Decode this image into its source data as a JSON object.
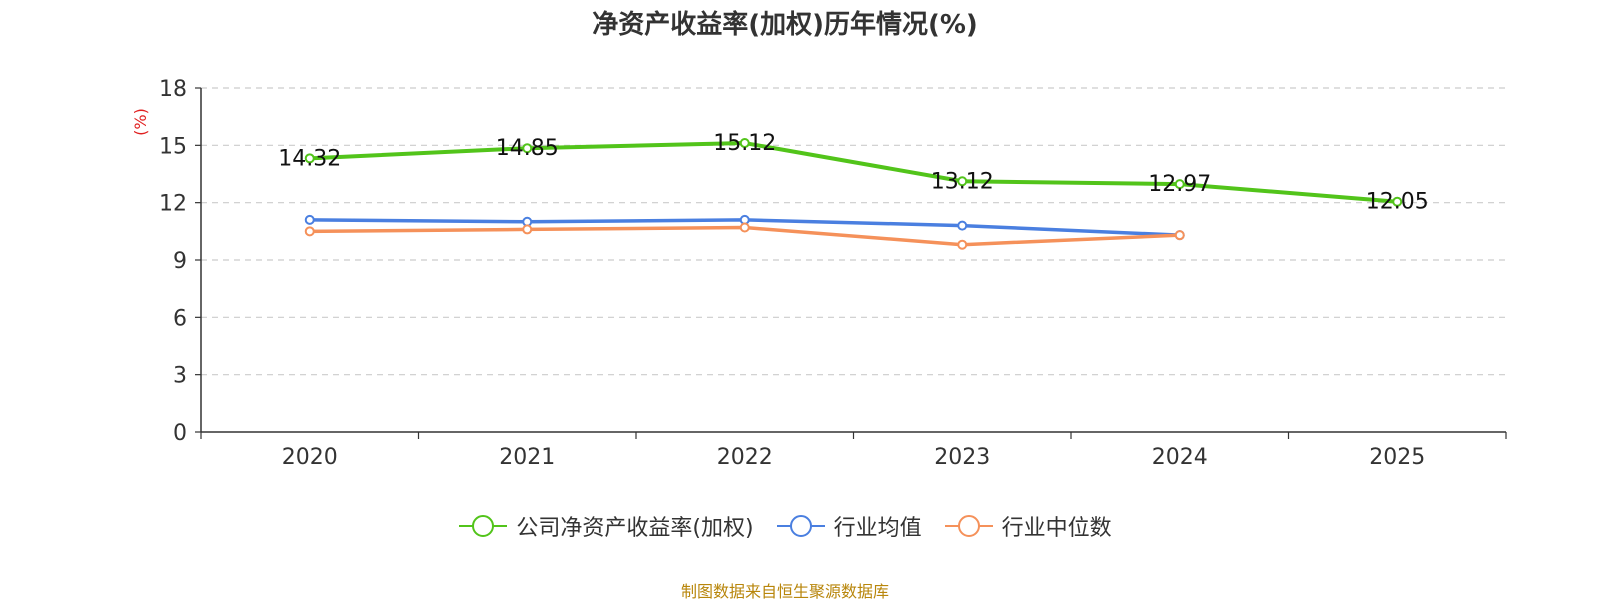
{
  "chart_data": {
    "type": "line",
    "title": "净资产收益率(加权)历年情况(%)",
    "ylabel": "(%)",
    "ylim": [
      0,
      18
    ],
    "yticks": [
      0,
      3,
      6,
      9,
      12,
      15,
      18
    ],
    "categories": [
      "2020",
      "2021",
      "2022",
      "2023",
      "2024",
      "2025"
    ],
    "grid": true,
    "legend_position": "bottom",
    "series": [
      {
        "name": "公司净资产收益率(加权)",
        "color": "#52c41a",
        "values": [
          14.32,
          14.85,
          15.12,
          13.12,
          12.97,
          12.05
        ],
        "labels": [
          "14.32",
          "14.85",
          "15.12",
          "13.12",
          "12.97",
          "12.05"
        ]
      },
      {
        "name": "行业均值",
        "color": "#4a7fe0",
        "values": [
          11.1,
          11.0,
          11.1,
          10.8,
          10.3,
          null
        ]
      },
      {
        "name": "行业中位数",
        "color": "#f5915a",
        "values": [
          10.5,
          10.6,
          10.7,
          9.8,
          10.3,
          null
        ]
      }
    ]
  },
  "footer": {
    "source": "制图数据来自恒生聚源数据库",
    "source_color": "#b8860b"
  },
  "ylabel_color": "#e02020"
}
